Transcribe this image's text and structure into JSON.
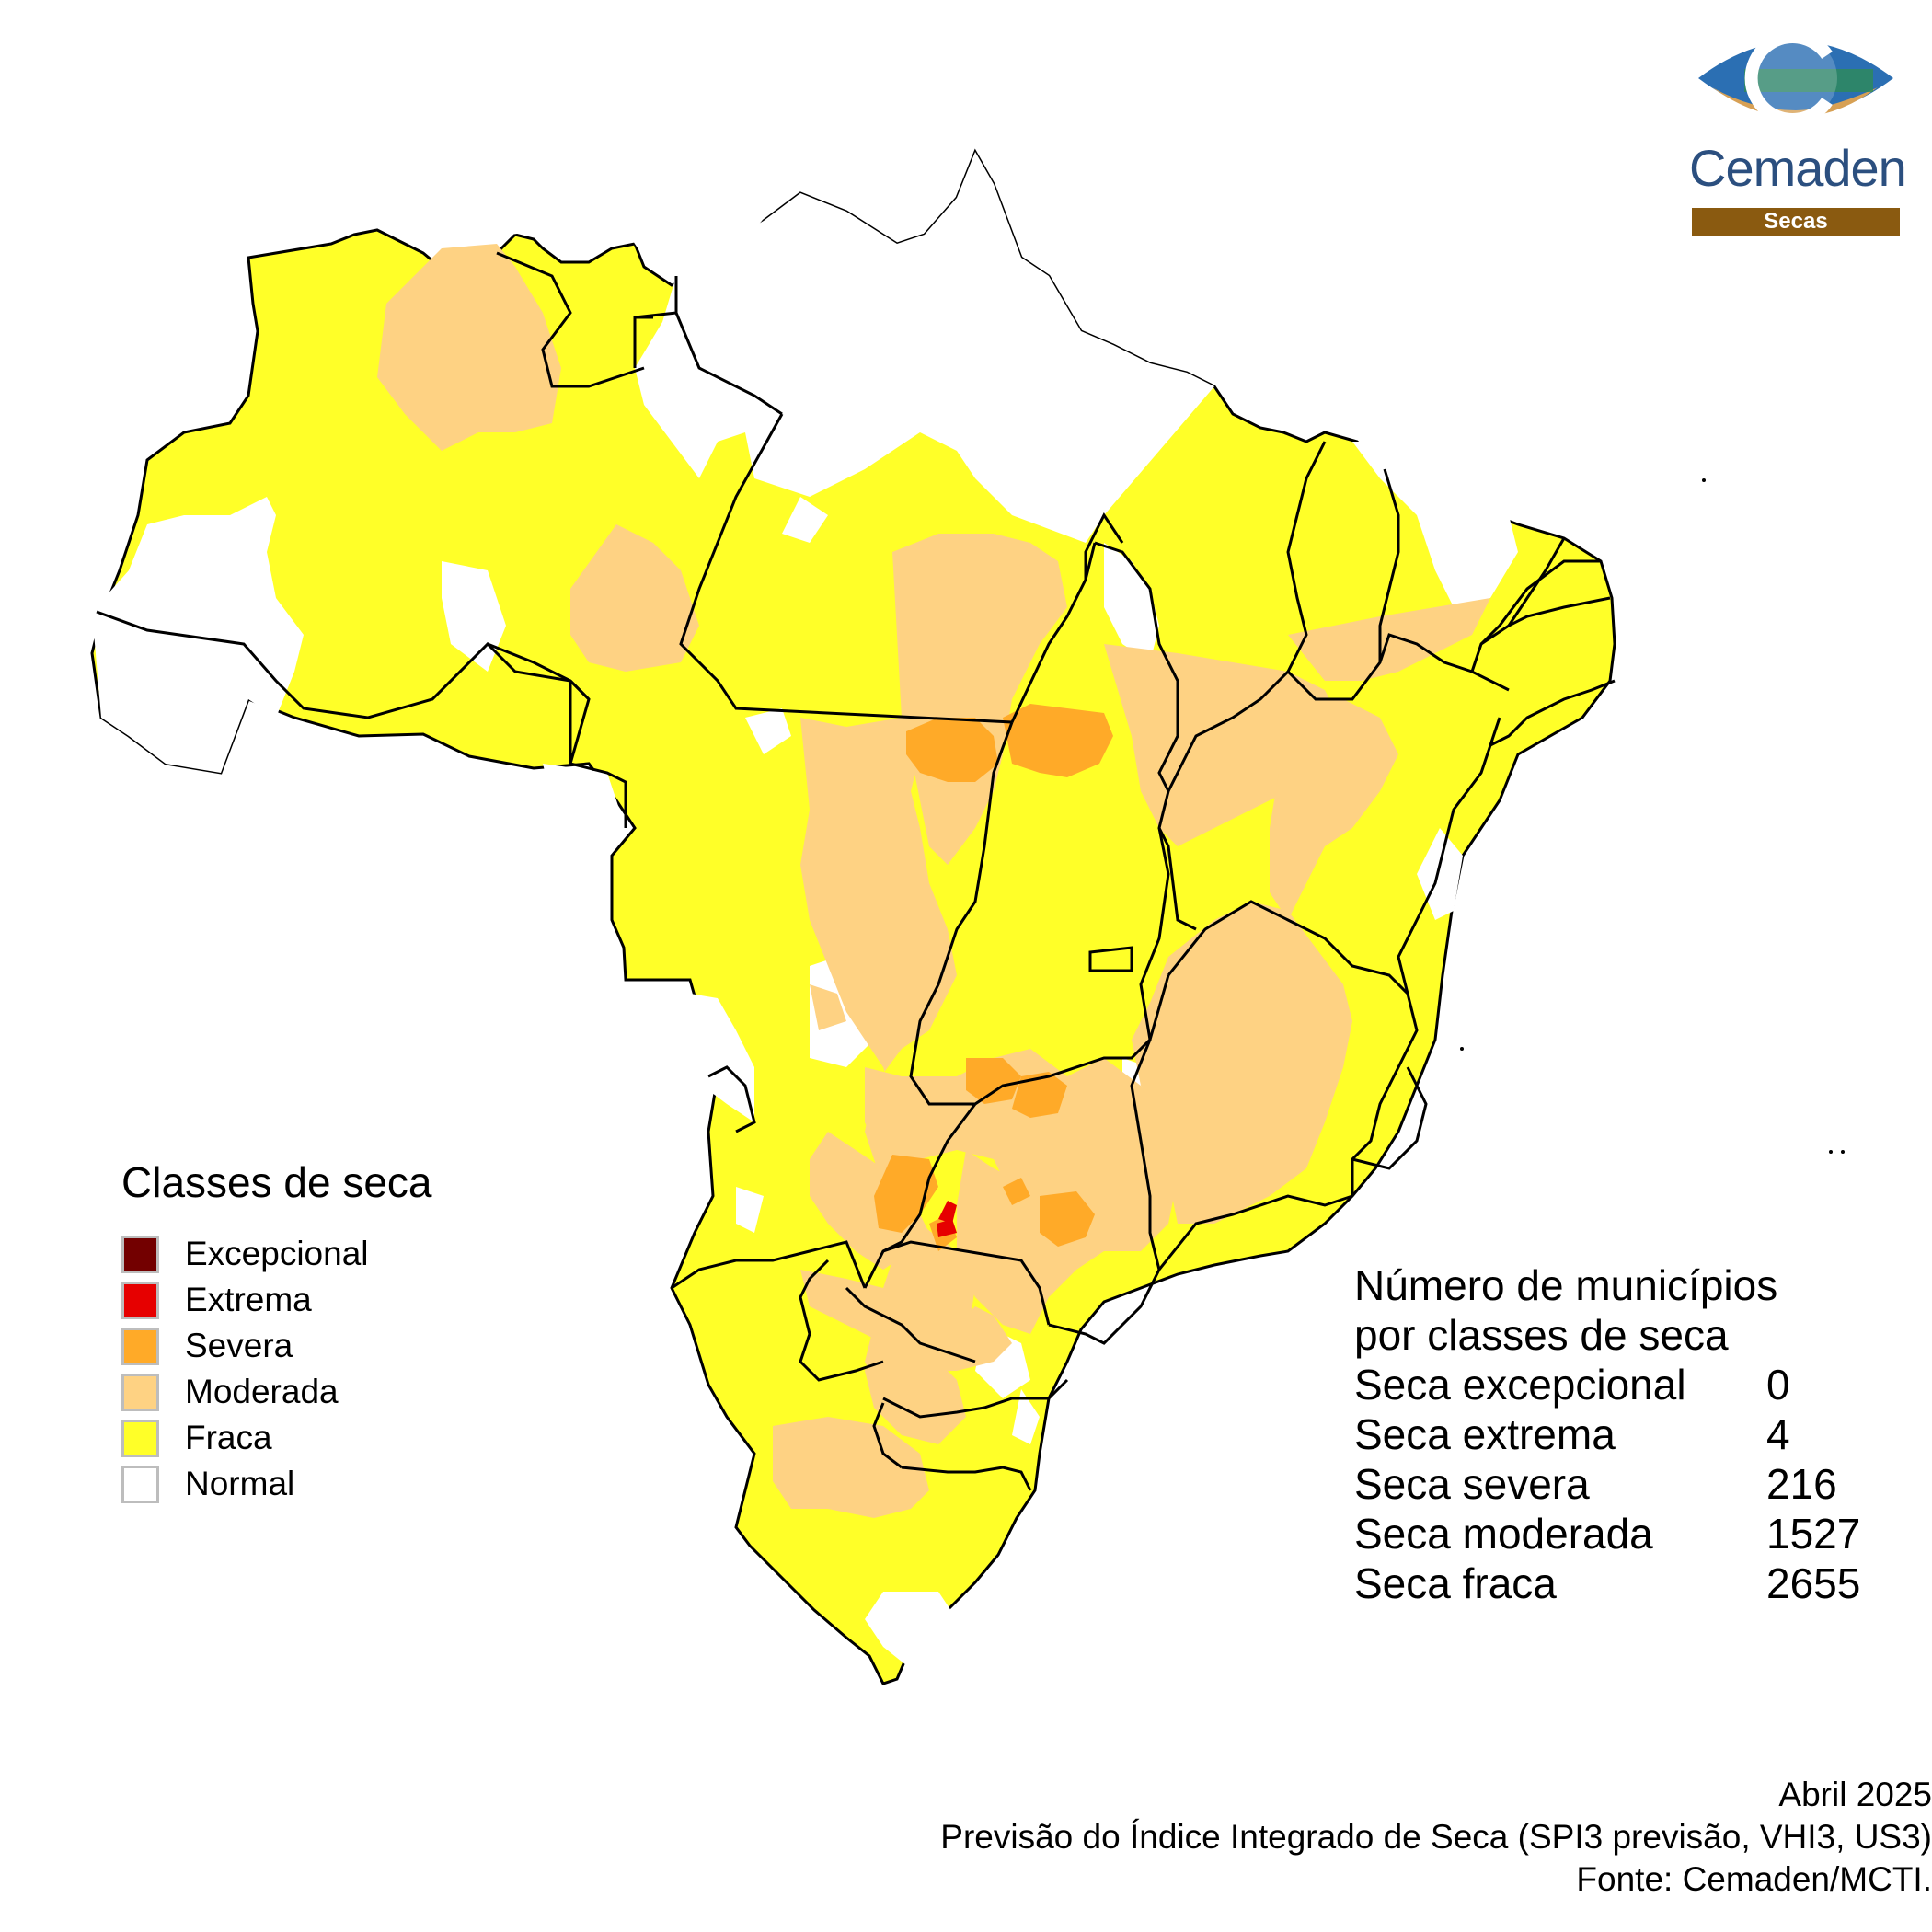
{
  "legend": {
    "title": "Classes de seca",
    "classes": [
      {
        "label": "Excepcional",
        "color": "#730000"
      },
      {
        "label": "Extrema",
        "color": "#e60000"
      },
      {
        "label": "Severa",
        "color": "#ffaa28"
      },
      {
        "label": "Moderada",
        "color": "#fed283"
      },
      {
        "label": "Fraca",
        "color": "#ffff28"
      },
      {
        "label": "Normal",
        "color": "#ffffff"
      }
    ]
  },
  "counts": {
    "title_line1": "Número de municípios",
    "title_line2": "por classes de seca",
    "rows": [
      {
        "name": "Seca excepcional",
        "value": "0"
      },
      {
        "name": "Seca extrema",
        "value": "4"
      },
      {
        "name": "Seca severa",
        "value": "216"
      },
      {
        "name": "Seca moderada",
        "value": "1527"
      },
      {
        "name": "Seca fraca",
        "value": "2655"
      }
    ]
  },
  "footer": {
    "date": "Abril 2025",
    "description": "Previsão do Índice Integrado de Seca (SPI3 previsão, VHI3, US3)",
    "source": "Fonte: Cemaden/MCTI."
  },
  "logo": {
    "name": "Cemaden",
    "subtitle": "Secas",
    "primary_color": "#2b4f7f",
    "bar_color": "#8a5a10"
  },
  "map_colors": {
    "fraca": "#ffff28",
    "moderada": "#fed283",
    "severa": "#ffaa28",
    "extrema": "#e60000",
    "normal": "#ffffff",
    "border": "#000000"
  }
}
